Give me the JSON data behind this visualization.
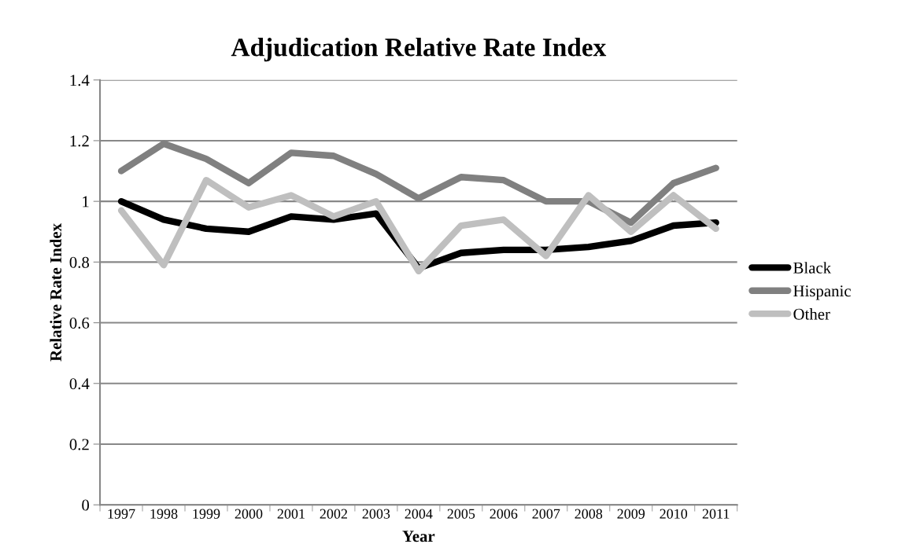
{
  "chart_data": {
    "type": "line",
    "title": "Adjudication Relative Rate Index",
    "xlabel": "Year",
    "ylabel": "Relative Rate Index",
    "categories": [
      "1997",
      "1998",
      "1999",
      "2000",
      "2001",
      "2002",
      "2003",
      "2004",
      "2005",
      "2006",
      "2007",
      "2008",
      "2009",
      "2010",
      "2011"
    ],
    "series": [
      {
        "name": "Black",
        "color": "#000000",
        "values": [
          1.0,
          0.94,
          0.91,
          0.9,
          0.95,
          0.94,
          0.96,
          0.78,
          0.83,
          0.84,
          0.84,
          0.85,
          0.87,
          0.92,
          0.93
        ]
      },
      {
        "name": "Hispanic",
        "color": "#808080",
        "values": [
          1.1,
          1.19,
          1.14,
          1.06,
          1.16,
          1.15,
          1.09,
          1.01,
          1.08,
          1.07,
          1.0,
          1.0,
          0.93,
          1.06,
          1.11
        ]
      },
      {
        "name": "Other",
        "color": "#bfbfbf",
        "values": [
          0.97,
          0.79,
          1.07,
          0.98,
          1.02,
          0.95,
          1.0,
          0.77,
          0.92,
          0.94,
          0.82,
          1.02,
          0.9,
          1.02,
          0.91
        ]
      }
    ],
    "ylim": [
      0,
      1.4
    ],
    "yticks": [
      0,
      0.2,
      0.4,
      0.6,
      0.8,
      1,
      1.2,
      1.4
    ],
    "grid": "y",
    "legend": "right",
    "marker": "none",
    "line_style": "solid"
  }
}
